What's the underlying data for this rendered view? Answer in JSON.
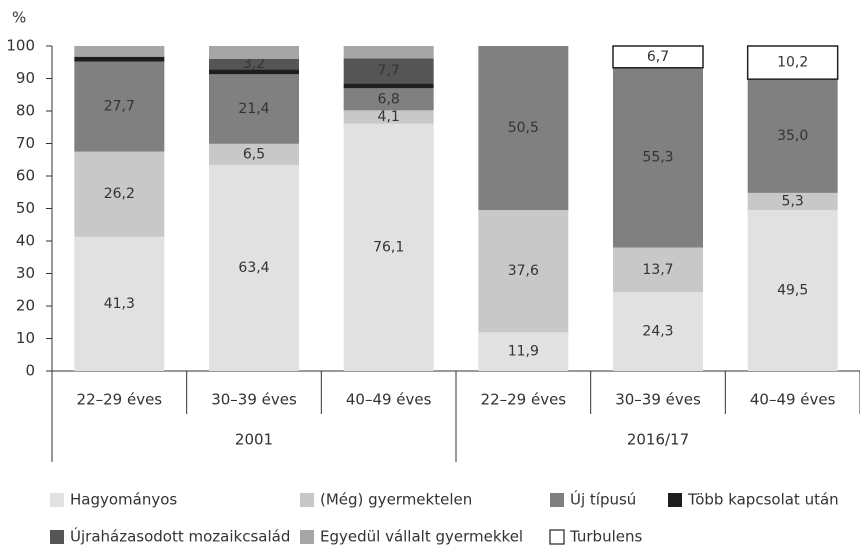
{
  "chart_data": {
    "type": "stacked_bar",
    "y_label": "%",
    "categories": [
      "22–29 éves",
      "30–39 éves",
      "40–49 éves",
      "22–29 éves",
      "30–39 éves",
      "40–49 éves"
    ],
    "group_labels": [
      "2001",
      "2016/17"
    ],
    "ylim": [
      0,
      100
    ],
    "yticks": [
      0,
      10,
      20,
      30,
      40,
      50,
      60,
      70,
      80,
      90,
      100
    ],
    "series": [
      {
        "name": "Hagyományos",
        "color": "#e1e1e1",
        "values": [
          41.3,
          63.4,
          76.1,
          11.9,
          24.3,
          49.5
        ],
        "value_labels": [
          "41,3",
          "63,4",
          "76,1",
          "11,9",
          "24,3",
          "49,5"
        ]
      },
      {
        "name": "(Még) gyermektelen",
        "color": "#c8c8c8",
        "values": [
          26.2,
          6.5,
          4.1,
          37.6,
          13.7,
          5.3
        ],
        "value_labels": [
          "26,2",
          "6,5",
          "4,1",
          "37,6",
          "13,7",
          "5,3"
        ]
      },
      {
        "name": "Új típusú",
        "color": "#808080",
        "values": [
          27.7,
          21.4,
          6.8,
          50.5,
          55.3,
          35.0
        ],
        "value_labels": [
          "27,7",
          "21,4",
          "6,8",
          "50,5",
          "55,3",
          "35,0"
        ]
      },
      {
        "name": "Több kapcsolat után",
        "color": "#1e1e1e",
        "values": [
          1.5,
          1.5,
          1.5,
          null,
          null,
          null
        ]
      },
      {
        "name": "Újraházasodott mozaikcsalád",
        "color": "#555555",
        "values": [
          null,
          3.2,
          7.7,
          null,
          null,
          null
        ],
        "value_labels": [
          null,
          "3,2",
          "7,7",
          null,
          null,
          null
        ]
      },
      {
        "name": "Egyedül vállalt gyermekkel",
        "color": "#a6a6a6",
        "values": [
          3.3,
          4.0,
          3.8,
          null,
          null,
          null
        ]
      },
      {
        "name": "Turbulens",
        "color": "#ffffff",
        "values": [
          null,
          null,
          null,
          null,
          6.7,
          10.2
        ],
        "value_labels": [
          null,
          null,
          null,
          null,
          "6,7",
          "10,2"
        ]
      }
    ]
  }
}
